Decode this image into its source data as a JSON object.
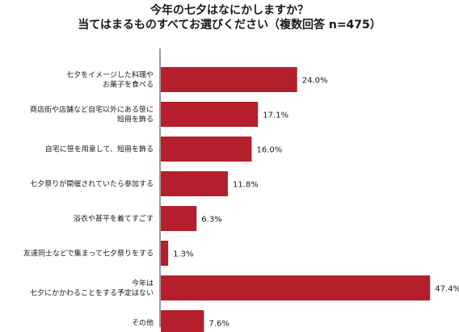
{
  "chart_data": {
    "type": "bar",
    "orientation": "horizontal",
    "title": [
      "今年の七夕はなにかしますか？",
      "当てはまるものすべてお選びください（複数回答 n=475）"
    ],
    "categories": [
      [
        "七夕をイメージした料理や",
        "お菓子を食べる"
      ],
      [
        "商店街や店舗など自宅以外にある笹に",
        "短冊を飾る"
      ],
      [
        "自宅に笹を用意して、短冊を飾る"
      ],
      [
        "七夕祭りが開催されていたら参加する"
      ],
      [
        "浴衣や甚平を着てすごす"
      ],
      [
        "友達同士などで集まって七夕祭りをする"
      ],
      [
        "今年は",
        "七夕にかかわることをする予定はない"
      ],
      [
        "その他"
      ]
    ],
    "values": [
      24.0,
      17.1,
      16.0,
      11.8,
      6.3,
      1.3,
      47.4,
      7.6
    ],
    "value_labels": [
      "24.0%",
      "17.1%",
      "16.0%",
      "11.8%",
      "6.3%",
      "1.3%",
      "47.4%",
      "7.6%"
    ],
    "unit": "%",
    "xlim": [
      0,
      50
    ],
    "grid": false,
    "legend": "none",
    "bar_color": "#b51f2b",
    "axis_color": "#333333"
  }
}
